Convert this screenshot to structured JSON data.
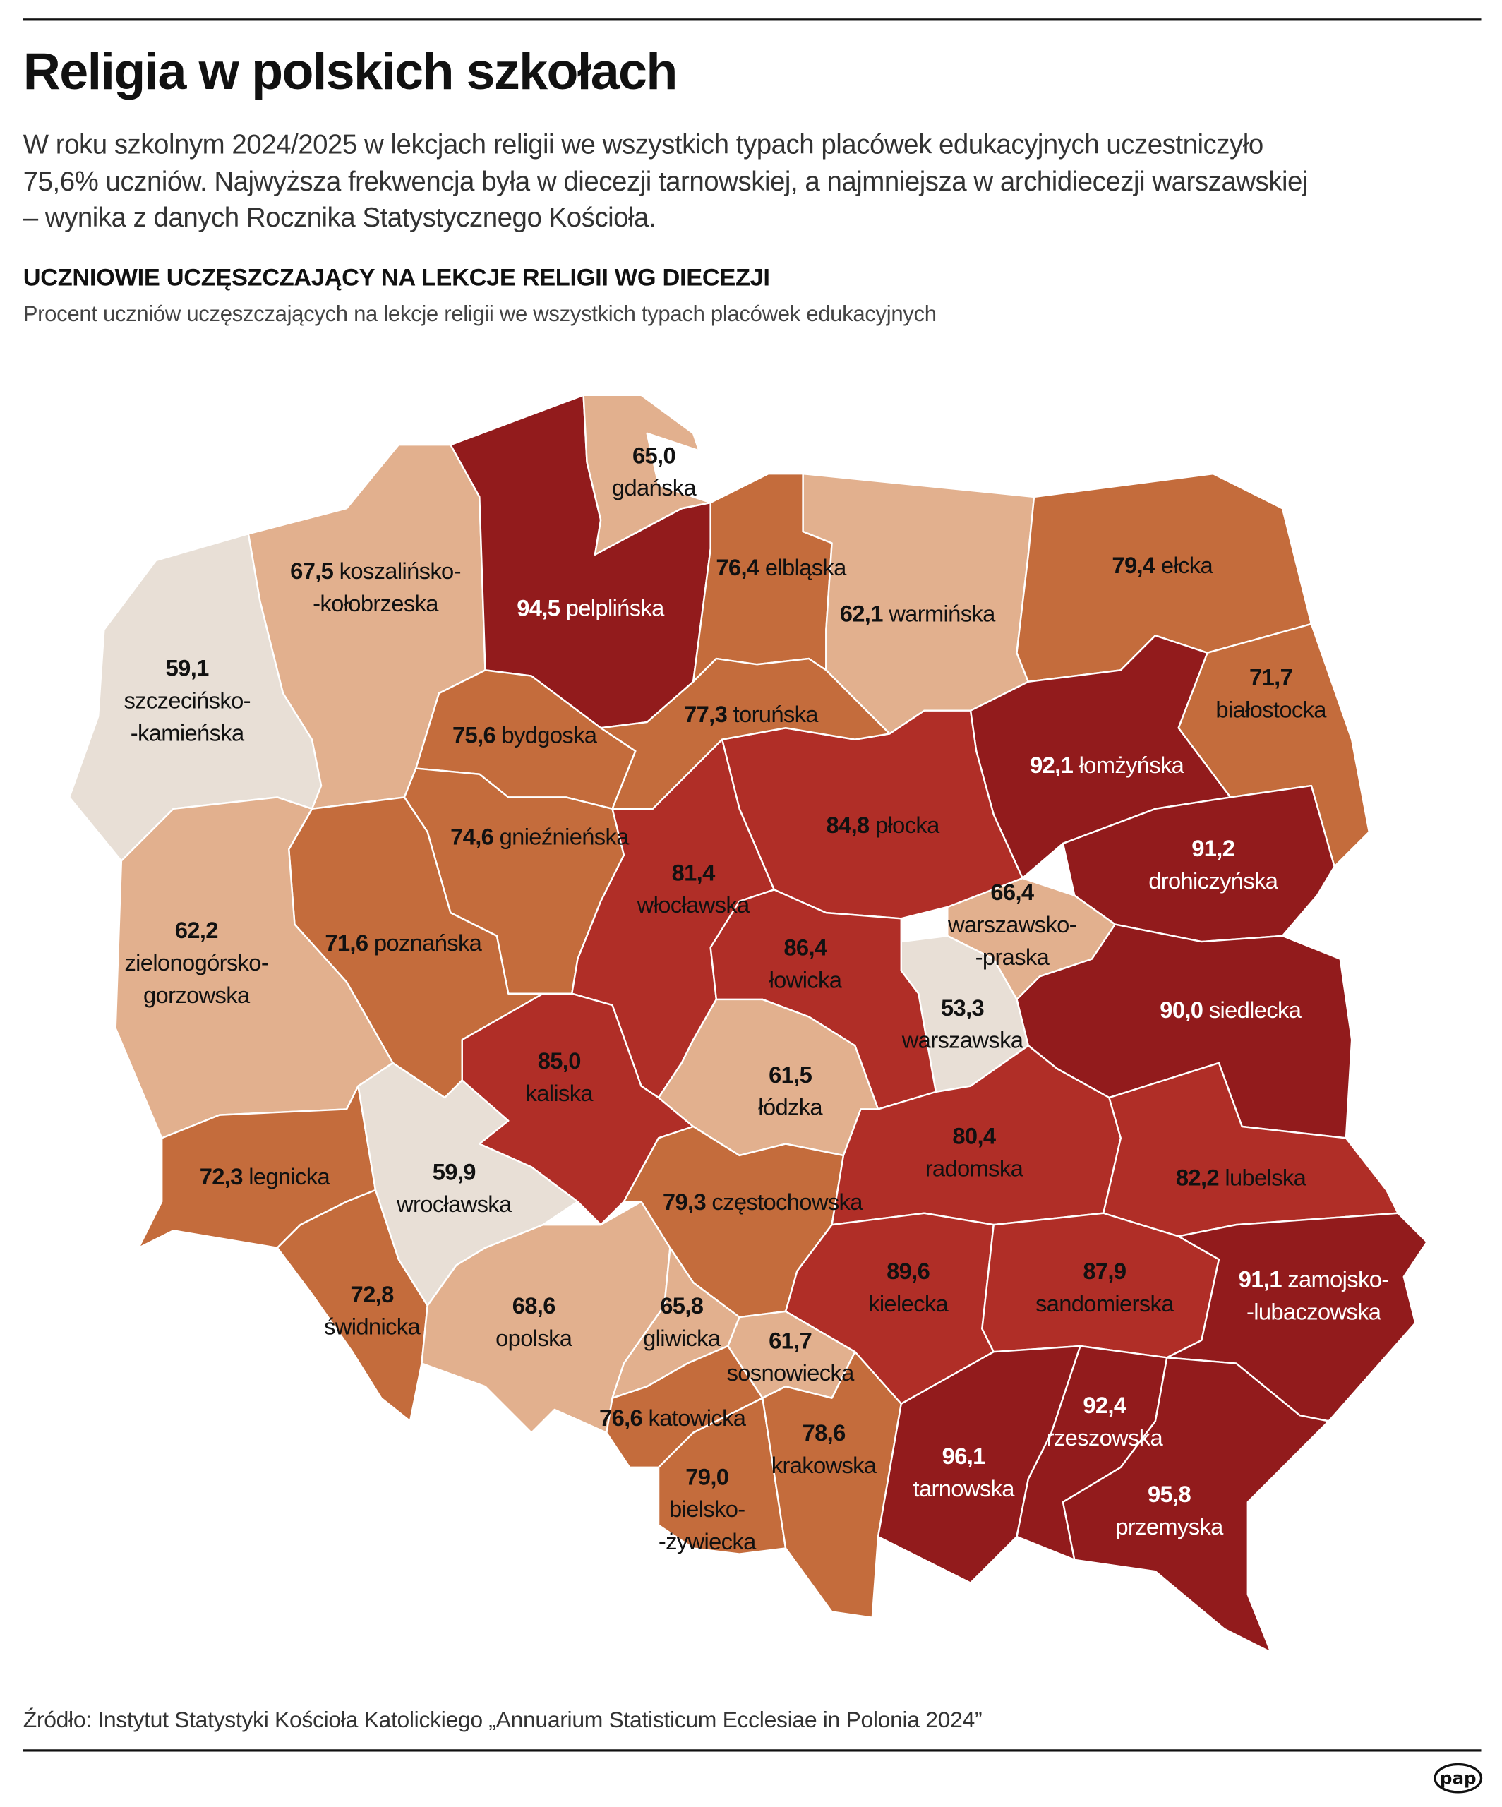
{
  "header": {
    "title": "Religia w polskich szkołach",
    "lead_lines": [
      "W roku szkolnym 2024/2025 w lekcjach religii we wszystkich typach placówek edukacyjnych uczestniczyło",
      "75,6% uczniów. Najwyższa frekwencja była w diecezji tarnowskiej, a najmniejsza w archidiecezji warszawskiej",
      "– wynika z danych Rocznika Statystycznego Kościoła."
    ],
    "heading": "UCZNIOWIE UCZĘSZCZAJĄCY NA LEKCJE RELIGII WG DIECEZJI",
    "subheading": "Procent uczniów uczęszczających na lekcje religii we wszystkich typach placówek edukacyjnych"
  },
  "footer": {
    "source": "Źródło: Instytut Statystyki Kościoła Katolickiego „Annuarium Statisticum Ecclesiae in Polonia 2024”",
    "logo_text": "pap"
  },
  "color_scale": {
    "below_60": "#e8dfd6",
    "60_70": "#e2b08e",
    "70_80": "#c46c3c",
    "80_90": "#b02e27",
    "90_plus": "#921b1c"
  },
  "chart_data": {
    "type": "choropleth",
    "unit": "%",
    "regions": [
      {
        "id": "szczecinsko-kamienska",
        "name_lines": [
          "szczecińsko-",
          "-kamieńska"
        ],
        "value": "59,1"
      },
      {
        "id": "koszalinsko-kolobrzeska",
        "name_lines": [
          "koszalińsko-",
          "-kołobrzeska"
        ],
        "value": "67,5"
      },
      {
        "id": "pelplinska",
        "name_lines": [
          "pelplińska"
        ],
        "value": "94,5"
      },
      {
        "id": "gdanska",
        "name_lines": [
          "gdańska"
        ],
        "value": "65,0"
      },
      {
        "id": "elblaska",
        "name_lines": [
          "elbląska"
        ],
        "value": "76,4"
      },
      {
        "id": "warminska",
        "name_lines": [
          "warmińska"
        ],
        "value": "62,1"
      },
      {
        "id": "elcka",
        "name_lines": [
          "ełcka"
        ],
        "value": "79,4"
      },
      {
        "id": "bialostocka",
        "name_lines": [
          "białostocka"
        ],
        "value": "71,7"
      },
      {
        "id": "lomzynska",
        "name_lines": [
          "łomżyńska"
        ],
        "value": "92,1"
      },
      {
        "id": "drohiczynska",
        "name_lines": [
          "drohiczyńska"
        ],
        "value": "91,2"
      },
      {
        "id": "siedlecka",
        "name_lines": [
          "siedlecka"
        ],
        "value": "90,0"
      },
      {
        "id": "warszawsko-praska",
        "name_lines": [
          "warszawsko-",
          "-praska"
        ],
        "value": "66,4"
      },
      {
        "id": "warszawska",
        "name_lines": [
          "warszawska"
        ],
        "value": "53,3"
      },
      {
        "id": "plocka",
        "name_lines": [
          "płocka"
        ],
        "value": "84,8"
      },
      {
        "id": "bydgoska",
        "name_lines": [
          "bydgoska"
        ],
        "value": "75,6"
      },
      {
        "id": "torunska",
        "name_lines": [
          "toruńska"
        ],
        "value": "77,3"
      },
      {
        "id": "gnieznienska",
        "name_lines": [
          "gnieźnieńska"
        ],
        "value": "74,6"
      },
      {
        "id": "wloclawska",
        "name_lines": [
          "włocławska"
        ],
        "value": "81,4"
      },
      {
        "id": "poznanska",
        "name_lines": [
          "poznańska"
        ],
        "value": "71,6"
      },
      {
        "id": "zielonogorsko-gorzowska",
        "name_lines": [
          "zielonogórsko-",
          "gorzowska"
        ],
        "value": "62,2"
      },
      {
        "id": "legnicka",
        "name_lines": [
          "legnicka"
        ],
        "value": "72,3"
      },
      {
        "id": "wroclawska",
        "name_lines": [
          "wrocławska"
        ],
        "value": "59,9"
      },
      {
        "id": "swidnicka",
        "name_lines": [
          "świdnicka"
        ],
        "value": "72,8"
      },
      {
        "id": "opolska",
        "name_lines": [
          "opolska"
        ],
        "value": "68,6"
      },
      {
        "id": "kaliska",
        "name_lines": [
          "kaliska"
        ],
        "value": "85,0"
      },
      {
        "id": "lowicka",
        "name_lines": [
          "łowicka"
        ],
        "value": "86,4"
      },
      {
        "id": "lodzka",
        "name_lines": [
          "łódzka"
        ],
        "value": "61,5"
      },
      {
        "id": "czestochowska",
        "name_lines": [
          "częstochowska"
        ],
        "value": "79,3"
      },
      {
        "id": "radomska",
        "name_lines": [
          "radomska"
        ],
        "value": "80,4"
      },
      {
        "id": "lubelska",
        "name_lines": [
          "lubelska"
        ],
        "value": "82,2"
      },
      {
        "id": "kielecka",
        "name_lines": [
          "kielecka"
        ],
        "value": "89,6"
      },
      {
        "id": "sandomierska",
        "name_lines": [
          "sandomierska"
        ],
        "value": "87,9"
      },
      {
        "id": "zamojsko-lubaczowska",
        "name_lines": [
          "zamojsko-",
          "-lubaczowska"
        ],
        "value": "91,1"
      },
      {
        "id": "gliwicka",
        "name_lines": [
          "gliwicka"
        ],
        "value": "65,8"
      },
      {
        "id": "sosnowiecka",
        "name_lines": [
          "sosnowiecka"
        ],
        "value": "61,7"
      },
      {
        "id": "katowicka",
        "name_lines": [
          "katowicka"
        ],
        "value": "76,6"
      },
      {
        "id": "bielsko-zywiecka",
        "name_lines": [
          "bielsko-",
          "-żywiecka"
        ],
        "value": "79,0"
      },
      {
        "id": "krakowska",
        "name_lines": [
          "krakowska"
        ],
        "value": "78,6"
      },
      {
        "id": "tarnowska",
        "name_lines": [
          "tarnowska"
        ],
        "value": "96,1"
      },
      {
        "id": "rzeszowska",
        "name_lines": [
          "rzeszowska"
        ],
        "value": "92,4"
      },
      {
        "id": "przemyska",
        "name_lines": [
          "przemyska"
        ],
        "value": "95,8"
      }
    ]
  }
}
